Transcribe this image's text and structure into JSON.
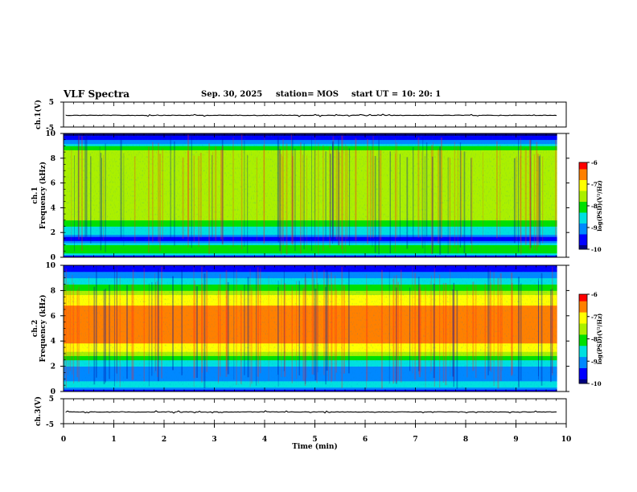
{
  "header": {
    "title": "VLF Spectra",
    "date": "Sep. 30, 2025",
    "station": "station= MOS",
    "start_label": "start  UT  =",
    "start_value": "10: 20: 1"
  },
  "colors": {
    "colormap": [
      "#00007f",
      "#0000ff",
      "#0088ff",
      "#00e0e0",
      "#00e000",
      "#aaf000",
      "#ffff00",
      "#ff8000",
      "#ff0000",
      "#ffc8c8"
    ],
    "spectrogram_bg": "#ff5050"
  },
  "chart_data": [
    {
      "type": "line",
      "id": "ch1-waveform",
      "ylabel": "ch.1(V)",
      "ylim": [
        -5,
        5
      ],
      "y_ticks": [
        "5",
        "-5"
      ],
      "x_range_min": [
        0,
        10
      ],
      "trace_level_v": -0.3,
      "trace_end_min": 9.82
    },
    {
      "type": "heatmap",
      "id": "ch1-spectrogram",
      "ylabel": "ch.1\nFrequency (kHz)",
      "ylim_khz": [
        0,
        10
      ],
      "y_ticks": [
        "0",
        "2",
        "4",
        "6",
        "8",
        "10"
      ],
      "x_range_min": [
        0,
        9.82
      ],
      "colorbar": {
        "label": "log(PSD)(V²/Hz)",
        "range": [
          -10,
          -6
        ],
        "ticks": [
          "-6",
          "-7",
          "-8",
          "-9",
          "-10"
        ]
      },
      "spectral_profile": [
        {
          "f_khz": 0.0,
          "log_psd": -10.0
        },
        {
          "f_khz": 0.3,
          "log_psd": -8.0
        },
        {
          "f_khz": 0.8,
          "log_psd": -7.8
        },
        {
          "f_khz": 1.2,
          "log_psd": -8.6
        },
        {
          "f_khz": 1.5,
          "log_psd": -9.6
        },
        {
          "f_khz": 1.8,
          "log_psd": -8.7
        },
        {
          "f_khz": 2.3,
          "log_psd": -8.4
        },
        {
          "f_khz": 2.9,
          "log_psd": -7.9
        },
        {
          "f_khz": 3.5,
          "log_psd": -7.4
        },
        {
          "f_khz": 5.0,
          "log_psd": -7.3
        },
        {
          "f_khz": 7.0,
          "log_psd": -7.3
        },
        {
          "f_khz": 8.4,
          "log_psd": -7.5
        },
        {
          "f_khz": 8.8,
          "log_psd": -8.0
        },
        {
          "f_khz": 9.2,
          "log_psd": -8.7
        },
        {
          "f_khz": 9.6,
          "log_psd": -9.5
        },
        {
          "f_khz": 10.0,
          "log_psd": -10.0
        }
      ]
    },
    {
      "type": "heatmap",
      "id": "ch2-spectrogram",
      "ylabel": "ch.2\nFrequency (kHz)",
      "ylim_khz": [
        0,
        10
      ],
      "y_ticks": [
        "0",
        "2",
        "4",
        "6",
        "8",
        "10"
      ],
      "x_range_min": [
        0,
        9.82
      ],
      "colorbar": {
        "label": "log(PSD)(V²/Hz)",
        "range": [
          -10,
          -6
        ],
        "ticks": [
          "-6",
          "-7",
          "-8",
          "-9",
          "-10"
        ]
      },
      "spectral_profile": [
        {
          "f_khz": 0.0,
          "log_psd": -10.0
        },
        {
          "f_khz": 0.4,
          "log_psd": -8.3
        },
        {
          "f_khz": 0.9,
          "log_psd": -8.8
        },
        {
          "f_khz": 1.5,
          "log_psd": -9.0
        },
        {
          "f_khz": 2.2,
          "log_psd": -8.6
        },
        {
          "f_khz": 2.8,
          "log_psd": -7.9
        },
        {
          "f_khz": 3.4,
          "log_psd": -7.0
        },
        {
          "f_khz": 4.0,
          "log_psd": -6.6
        },
        {
          "f_khz": 6.0,
          "log_psd": -6.5
        },
        {
          "f_khz": 7.4,
          "log_psd": -6.9
        },
        {
          "f_khz": 8.0,
          "log_psd": -7.8
        },
        {
          "f_khz": 8.8,
          "log_psd": -8.6
        },
        {
          "f_khz": 9.5,
          "log_psd": -9.2
        },
        {
          "f_khz": 10.0,
          "log_psd": -9.8
        }
      ]
    },
    {
      "type": "line",
      "id": "ch3-waveform",
      "ylabel": "ch.3(V)",
      "ylim": [
        -5,
        5
      ],
      "y_ticks": [
        "5",
        "-5"
      ],
      "x_range_min": [
        0,
        10
      ],
      "trace_level_v": -0.3,
      "trace_end_min": 9.82
    }
  ],
  "x_axis": {
    "xlabel": "Time  (min)",
    "xlim": [
      0,
      10
    ],
    "ticks": [
      "0",
      "1",
      "2",
      "3",
      "4",
      "5",
      "6",
      "7",
      "8",
      "9",
      "10"
    ]
  }
}
